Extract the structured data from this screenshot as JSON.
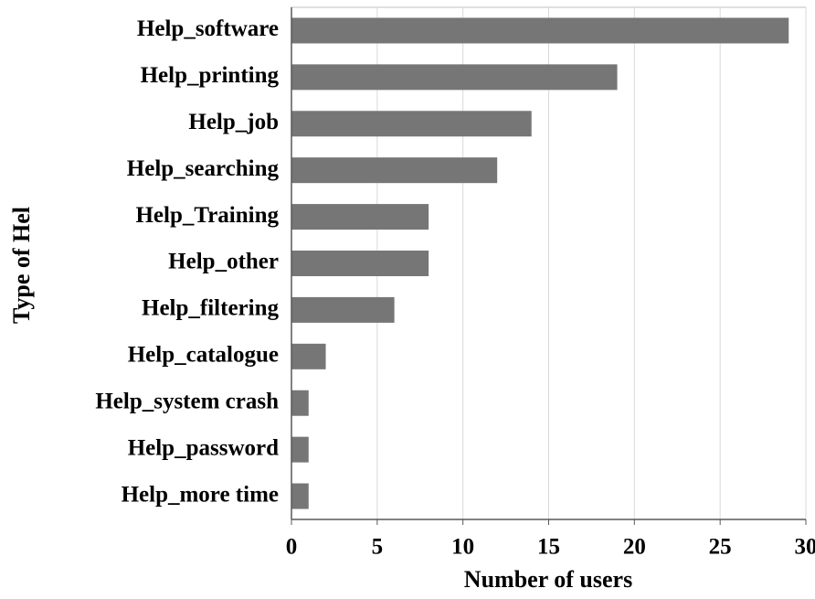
{
  "chart_data": {
    "type": "barh",
    "xlabel": "Number of users",
    "ylabel": "Type of Hel",
    "categories": [
      "Help_software",
      "Help_printing",
      "Help_job",
      "Help_searching",
      "Help_Training",
      "Help_other",
      "Help_filtering",
      "Help_catalogue",
      "Help_system crash",
      "Help_password",
      "Help_more time"
    ],
    "values": [
      29,
      19,
      14,
      12,
      8,
      8,
      6,
      2,
      1,
      1,
      1
    ],
    "color": "#767676",
    "xlim": [
      0,
      30
    ],
    "xticks": [
      0,
      5,
      10,
      15,
      20,
      25,
      30
    ],
    "grid": true
  }
}
